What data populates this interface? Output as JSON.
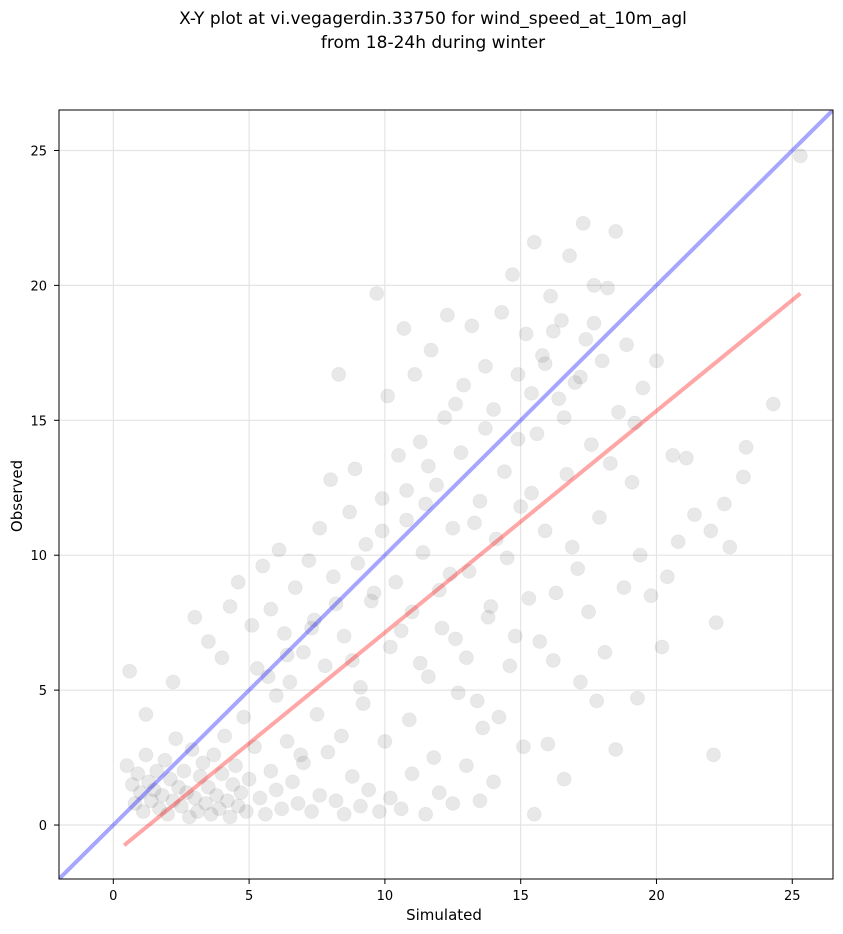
{
  "chart_data": {
    "type": "scatter",
    "title_line1": "X-Y plot at vi.vegagerdin.33750 for wind_speed_at_10m_agl",
    "title_line2": "from 18-24h during winter",
    "xlabel": "Simulated",
    "ylabel": "Observed",
    "xlim": [
      -2,
      26.5
    ],
    "ylim": [
      -2,
      26.5
    ],
    "xticks": [
      0,
      5,
      10,
      15,
      20,
      25
    ],
    "yticks": [
      0,
      5,
      10,
      15,
      20,
      25
    ],
    "grid": true,
    "point_color": "#000000",
    "identity_line": {
      "color": "#0000ff",
      "x": [
        -2,
        26.5
      ],
      "y": [
        -2,
        26.5
      ]
    },
    "fit_line": {
      "color": "#ff0000",
      "x": [
        0.4,
        25.3
      ],
      "y": [
        -0.75,
        19.7
      ]
    },
    "points": [
      [
        0.5,
        2.2
      ],
      [
        0.7,
        1.5
      ],
      [
        0.8,
        0.8
      ],
      [
        0.9,
        1.9
      ],
      [
        1.0,
        1.2
      ],
      [
        1.1,
        0.5
      ],
      [
        1.2,
        2.6
      ],
      [
        1.3,
        1.6
      ],
      [
        1.4,
        0.9
      ],
      [
        1.5,
        1.3
      ],
      [
        1.6,
        2.0
      ],
      [
        1.7,
        0.6
      ],
      [
        1.8,
        1.1
      ],
      [
        1.9,
        2.4
      ],
      [
        2.0,
        0.4
      ],
      [
        2.1,
        1.7
      ],
      [
        2.2,
        0.9
      ],
      [
        2.3,
        3.2
      ],
      [
        2.4,
        1.4
      ],
      [
        2.5,
        0.7
      ],
      [
        2.6,
        2.0
      ],
      [
        2.7,
        1.2
      ],
      [
        2.8,
        0.3
      ],
      [
        2.9,
        2.8
      ],
      [
        3.0,
        1.0
      ],
      [
        3.1,
        0.5
      ],
      [
        3.2,
        1.8
      ],
      [
        3.3,
        2.3
      ],
      [
        3.4,
        0.8
      ],
      [
        3.5,
        1.4
      ],
      [
        3.6,
        0.4
      ],
      [
        3.7,
        2.6
      ],
      [
        3.8,
        1.1
      ],
      [
        3.9,
        0.6
      ],
      [
        4.0,
        1.9
      ],
      [
        4.1,
        3.3
      ],
      [
        4.2,
        0.9
      ],
      [
        4.3,
        0.3
      ],
      [
        4.4,
        1.5
      ],
      [
        4.5,
        2.2
      ],
      [
        4.6,
        0.7
      ],
      [
        4.7,
        1.2
      ],
      [
        4.8,
        4.0
      ],
      [
        4.9,
        0.5
      ],
      [
        5.0,
        1.7
      ],
      [
        5.2,
        2.9
      ],
      [
        5.4,
        1.0
      ],
      [
        5.6,
        0.4
      ],
      [
        5.8,
        2.0
      ],
      [
        6.0,
        1.3
      ],
      [
        6.2,
        0.6
      ],
      [
        6.4,
        3.1
      ],
      [
        6.6,
        1.6
      ],
      [
        6.8,
        0.8
      ],
      [
        7.0,
        2.3
      ],
      [
        7.3,
        0.5
      ],
      [
        7.6,
        1.1
      ],
      [
        7.9,
        2.7
      ],
      [
        8.2,
        0.9
      ],
      [
        8.5,
        0.4
      ],
      [
        8.8,
        1.8
      ],
      [
        9.1,
        0.7
      ],
      [
        9.4,
        1.3
      ],
      [
        9.8,
        0.5
      ],
      [
        10.2,
        1.0
      ],
      [
        10.6,
        0.6
      ],
      [
        11.0,
        1.9
      ],
      [
        11.5,
        0.4
      ],
      [
        12.0,
        1.2
      ],
      [
        12.5,
        0.8
      ],
      [
        13.0,
        2.2
      ],
      [
        13.5,
        0.9
      ],
      [
        14.0,
        1.6
      ],
      [
        0.6,
        5.7
      ],
      [
        1.2,
        4.1
      ],
      [
        2.2,
        5.3
      ],
      [
        3.0,
        7.7
      ],
      [
        3.5,
        6.8
      ],
      [
        4.0,
        6.2
      ],
      [
        4.3,
        8.1
      ],
      [
        4.6,
        9.0
      ],
      [
        5.1,
        7.4
      ],
      [
        5.3,
        5.8
      ],
      [
        5.5,
        9.6
      ],
      [
        5.8,
        8.0
      ],
      [
        6.1,
        10.2
      ],
      [
        6.3,
        7.1
      ],
      [
        6.5,
        5.3
      ],
      [
        6.7,
        8.8
      ],
      [
        7.0,
        6.4
      ],
      [
        7.2,
        9.8
      ],
      [
        7.4,
        7.6
      ],
      [
        7.6,
        11.0
      ],
      [
        7.8,
        5.9
      ],
      [
        8.0,
        12.8
      ],
      [
        8.1,
        9.2
      ],
      [
        8.3,
        16.7
      ],
      [
        8.5,
        7.0
      ],
      [
        8.7,
        11.6
      ],
      [
        8.9,
        13.2
      ],
      [
        9.1,
        5.1
      ],
      [
        9.3,
        10.4
      ],
      [
        9.5,
        8.3
      ],
      [
        9.7,
        19.7
      ],
      [
        9.9,
        12.1
      ],
      [
        10.1,
        15.9
      ],
      [
        10.2,
        6.6
      ],
      [
        10.4,
        9.0
      ],
      [
        10.5,
        13.7
      ],
      [
        10.7,
        18.4
      ],
      [
        10.8,
        11.3
      ],
      [
        11.0,
        7.9
      ],
      [
        11.1,
        16.7
      ],
      [
        11.3,
        14.2
      ],
      [
        11.4,
        10.1
      ],
      [
        11.6,
        5.5
      ],
      [
        11.7,
        17.6
      ],
      [
        11.9,
        12.6
      ],
      [
        12.0,
        8.7
      ],
      [
        12.2,
        15.1
      ],
      [
        12.3,
        18.9
      ],
      [
        12.5,
        11.0
      ],
      [
        12.6,
        6.9
      ],
      [
        12.8,
        13.8
      ],
      [
        12.9,
        16.3
      ],
      [
        13.1,
        9.4
      ],
      [
        13.2,
        18.5
      ],
      [
        13.4,
        4.6
      ],
      [
        13.5,
        12.0
      ],
      [
        13.7,
        17.0
      ],
      [
        13.8,
        7.7
      ],
      [
        14.0,
        15.4
      ],
      [
        14.1,
        10.6
      ],
      [
        14.3,
        19.0
      ],
      [
        14.4,
        13.1
      ],
      [
        14.6,
        5.9
      ],
      [
        14.7,
        20.4
      ],
      [
        14.9,
        16.7
      ],
      [
        15.0,
        11.8
      ],
      [
        15.2,
        18.2
      ],
      [
        15.3,
        8.4
      ],
      [
        15.5,
        21.6
      ],
      [
        15.6,
        14.5
      ],
      [
        15.8,
        17.4
      ],
      [
        15.9,
        10.9
      ],
      [
        16.1,
        19.6
      ],
      [
        16.2,
        6.1
      ],
      [
        16.4,
        15.8
      ],
      [
        16.5,
        18.7
      ],
      [
        16.7,
        13.0
      ],
      [
        16.8,
        21.1
      ],
      [
        17.0,
        16.4
      ],
      [
        17.1,
        9.5
      ],
      [
        17.3,
        22.3
      ],
      [
        17.4,
        18.0
      ],
      [
        17.6,
        14.1
      ],
      [
        17.7,
        20.0
      ],
      [
        17.9,
        11.4
      ],
      [
        18.0,
        17.2
      ],
      [
        18.2,
        19.9
      ],
      [
        18.3,
        13.4
      ],
      [
        18.5,
        22.0
      ],
      [
        18.6,
        15.3
      ],
      [
        18.8,
        8.8
      ],
      [
        18.9,
        17.8
      ],
      [
        19.1,
        12.7
      ],
      [
        19.2,
        14.9
      ],
      [
        19.4,
        10.0
      ],
      [
        19.5,
        16.2
      ],
      [
        19.8,
        8.5
      ],
      [
        20.0,
        17.2
      ],
      [
        20.2,
        6.6
      ],
      [
        20.4,
        9.2
      ],
      [
        20.6,
        13.7
      ],
      [
        20.8,
        10.5
      ],
      [
        21.1,
        13.6
      ],
      [
        21.4,
        11.5
      ],
      [
        22.0,
        10.9
      ],
      [
        22.2,
        7.5
      ],
      [
        22.5,
        11.9
      ],
      [
        22.7,
        10.3
      ],
      [
        23.2,
        12.9
      ],
      [
        23.3,
        14.0
      ],
      [
        24.3,
        15.6
      ],
      [
        25.3,
        24.8
      ],
      [
        22.1,
        2.6
      ],
      [
        18.5,
        2.8
      ],
      [
        15.5,
        0.4
      ],
      [
        16.6,
        1.7
      ],
      [
        19.3,
        4.7
      ],
      [
        17.8,
        4.6
      ],
      [
        16.0,
        3.0
      ],
      [
        17.2,
        5.3
      ],
      [
        15.1,
        2.9
      ],
      [
        14.2,
        4.0
      ],
      [
        13.6,
        3.6
      ],
      [
        12.7,
        4.9
      ],
      [
        11.8,
        2.5
      ],
      [
        10.9,
        3.9
      ],
      [
        10.0,
        3.1
      ],
      [
        9.2,
        4.5
      ],
      [
        8.4,
        3.3
      ],
      [
        7.5,
        4.1
      ],
      [
        6.9,
        2.6
      ],
      [
        6.0,
        4.8
      ],
      [
        11.3,
        6.0
      ],
      [
        12.1,
        7.3
      ],
      [
        13.0,
        6.2
      ],
      [
        13.9,
        8.1
      ],
      [
        14.8,
        7.0
      ],
      [
        15.7,
        6.8
      ],
      [
        16.3,
        8.6
      ],
      [
        17.5,
        7.9
      ],
      [
        18.1,
        6.4
      ],
      [
        16.9,
        10.3
      ],
      [
        15.4,
        12.3
      ],
      [
        14.5,
        9.9
      ],
      [
        13.3,
        11.2
      ],
      [
        12.4,
        9.3
      ],
      [
        11.5,
        11.9
      ],
      [
        10.6,
        7.2
      ],
      [
        9.6,
        8.6
      ],
      [
        8.8,
        6.1
      ],
      [
        16.6,
        15.1
      ],
      [
        15.9,
        17.1
      ],
      [
        17.2,
        16.6
      ],
      [
        16.2,
        18.3
      ],
      [
        17.7,
        18.6
      ],
      [
        15.4,
        16.0
      ],
      [
        14.9,
        14.3
      ],
      [
        13.7,
        14.7
      ],
      [
        12.6,
        15.6
      ],
      [
        11.6,
        13.3
      ],
      [
        10.8,
        12.4
      ],
      [
        9.9,
        10.9
      ],
      [
        9.0,
        9.7
      ],
      [
        8.2,
        8.2
      ],
      [
        7.3,
        7.3
      ],
      [
        6.4,
        6.3
      ],
      [
        5.7,
        5.5
      ]
    ]
  }
}
